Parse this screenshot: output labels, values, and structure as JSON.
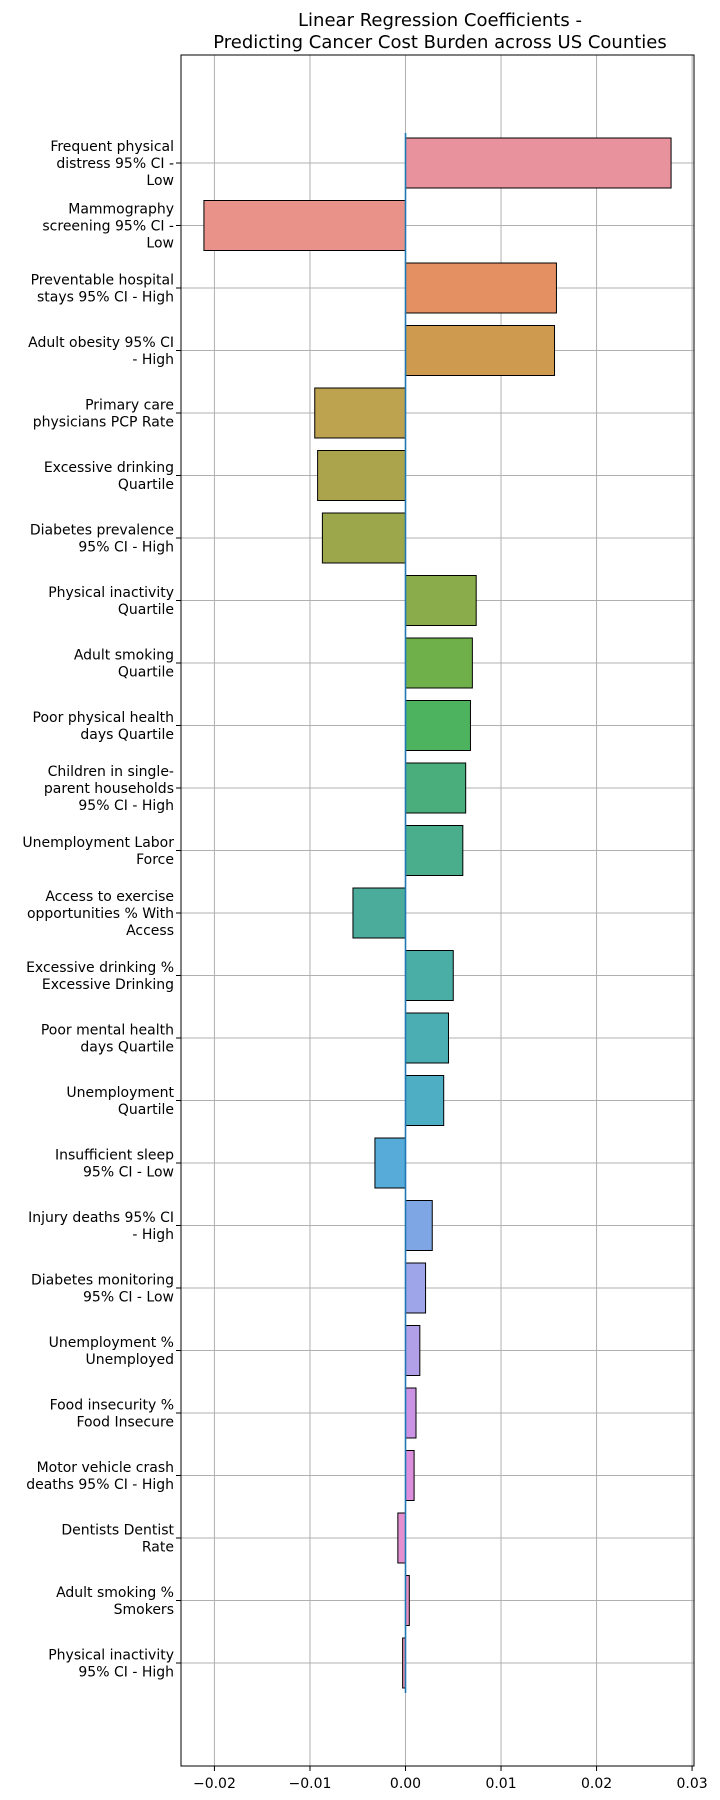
{
  "chart_data": {
    "type": "bar",
    "orientation": "horizontal",
    "title": [
      "Linear Regression Coefficients -",
      "Predicting Cancer Cost Burden across US Counties"
    ],
    "xlabel": "",
    "ylabel": "",
    "xlim": [
      -0.0235,
      0.0302
    ],
    "xticks": [
      -0.02,
      -0.01,
      0.0,
      0.01,
      0.02,
      0.03
    ],
    "xtick_labels": [
      "−0.02",
      "−0.01",
      "0.00",
      "0.01",
      "0.02",
      "0.03"
    ],
    "grid": true,
    "zero_line_color": "#1f77b4",
    "bars": [
      {
        "label": [
          "Frequent physical",
          "distress 95% CI -",
          "Low"
        ],
        "value": 0.0278,
        "color": "#e8929d"
      },
      {
        "label": [
          "Mammography",
          "screening 95% CI -",
          "Low"
        ],
        "value": -0.0211,
        "color": "#e8928a"
      },
      {
        "label": [
          "Preventable hospital",
          "stays 95% CI - High"
        ],
        "value": 0.0158,
        "color": "#e49062"
      },
      {
        "label": [
          "Adult obesity 95% CI",
          "- High"
        ],
        "value": 0.0156,
        "color": "#ce9a4f"
      },
      {
        "label": [
          "Primary care",
          "physicians PCP Rate"
        ],
        "value": -0.0095,
        "color": "#bda24f"
      },
      {
        "label": [
          "Excessive drinking",
          "Quartile"
        ],
        "value": -0.0092,
        "color": "#aca44c"
      },
      {
        "label": [
          "Diabetes prevalence",
          "95% CI - High"
        ],
        "value": -0.0087,
        "color": "#9ca64b"
      },
      {
        "label": [
          "Physical inactivity",
          "Quartile"
        ],
        "value": 0.0074,
        "color": "#8aac4a"
      },
      {
        "label": [
          "Adult smoking",
          "Quartile"
        ],
        "value": 0.007,
        "color": "#70b04a"
      },
      {
        "label": [
          "Poor physical health",
          "days Quartile"
        ],
        "value": 0.0068,
        "color": "#4db35e"
      },
      {
        "label": [
          "Children in single-",
          "parent households",
          "95% CI - High"
        ],
        "value": 0.0063,
        "color": "#4aae7c"
      },
      {
        "label": [
          "Unemployment Labor",
          "Force"
        ],
        "value": 0.006,
        "color": "#4aae8c"
      },
      {
        "label": [
          "Access to exercise",
          "opportunities % With",
          "Access"
        ],
        "value": -0.0055,
        "color": "#4bac9c"
      },
      {
        "label": [
          "Excessive drinking %",
          "Excessive Drinking"
        ],
        "value": 0.005,
        "color": "#4aaea6"
      },
      {
        "label": [
          "Poor mental health",
          "days Quartile"
        ],
        "value": 0.0045,
        "color": "#4aaeb3"
      },
      {
        "label": [
          "Unemployment",
          "Quartile"
        ],
        "value": 0.004,
        "color": "#4eaec4"
      },
      {
        "label": [
          "Insufficient sleep",
          "95% CI - Low"
        ],
        "value": -0.0032,
        "color": "#56abd8"
      },
      {
        "label": [
          "Injury deaths 95% CI",
          "- High"
        ],
        "value": 0.0028,
        "color": "#7ea6e4"
      },
      {
        "label": [
          "Diabetes monitoring",
          "95% CI - Low"
        ],
        "value": 0.0021,
        "color": "#9ea5e8"
      },
      {
        "label": [
          "Unemployment %",
          "Unemployed"
        ],
        "value": 0.0015,
        "color": "#b19fe8"
      },
      {
        "label": [
          "Food insecurity %",
          "Food Insecure"
        ],
        "value": 0.0011,
        "color": "#cb93e3"
      },
      {
        "label": [
          "Motor vehicle crash",
          "deaths 95% CI - High"
        ],
        "value": 0.0009,
        "color": "#dc8fdc"
      },
      {
        "label": [
          "Dentists Dentist",
          "Rate"
        ],
        "value": -0.0008,
        "color": "#e48fd0"
      },
      {
        "label": [
          "Adult smoking %",
          "Smokers"
        ],
        "value": 0.0004,
        "color": "#e78fbf"
      },
      {
        "label": [
          "Physical inactivity",
          "95% CI - High"
        ],
        "value": -0.0003,
        "color": "#e891ae"
      }
    ]
  }
}
